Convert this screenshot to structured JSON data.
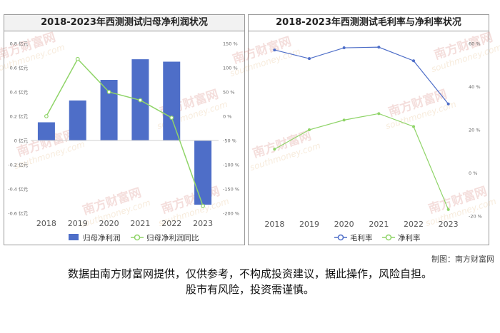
{
  "chart_data": [
    {
      "type": "bar",
      "title": "2018-2023年西测测试归母净利润状况",
      "categories": [
        "2018",
        "2019",
        "2020",
        "2021",
        "2022",
        "2023"
      ],
      "series": [
        {
          "name": "归母净利润",
          "kind": "bar",
          "axis": "left",
          "color": "#4e6ec8",
          "values": [
            0.15,
            0.33,
            0.5,
            0.67,
            0.65,
            -0.53
          ]
        },
        {
          "name": "归母净利润同比",
          "kind": "line",
          "axis": "right",
          "color": "#8fd468",
          "values": [
            0,
            118,
            50,
            33,
            -3,
            -185
          ]
        }
      ],
      "y_left": {
        "ylim": [
          -0.6,
          0.8
        ],
        "ticks": [
          -0.6,
          -0.4,
          -0.2,
          0,
          0.2,
          0.4,
          0.6,
          0.8
        ],
        "tick_labels": [
          "-0.6 亿元",
          "-0.4 亿元",
          "-0.2 亿元",
          "0 亿元",
          "0.2 亿元",
          "0.4 亿元",
          "0.6 亿元",
          "0.8 亿元"
        ]
      },
      "y_right": {
        "ylim": [
          -200,
          150
        ],
        "ticks": [
          -200,
          -150,
          -100,
          -50,
          0,
          50,
          100,
          150
        ],
        "tick_labels": [
          "-200 %",
          "-150 %",
          "-100 %",
          "-50 %",
          "0 %",
          "50 %",
          "100 %",
          "150 %"
        ]
      },
      "grid": false,
      "legend_position": "bottom"
    },
    {
      "type": "line",
      "title": "2018-2023年西测测试毛利率与净利率状况",
      "categories": [
        "2018",
        "2019",
        "2020",
        "2021",
        "2022",
        "2023"
      ],
      "series": [
        {
          "name": "毛利率",
          "color": "#4e6ec8",
          "values": [
            57,
            53,
            58,
            58.3,
            52,
            32
          ]
        },
        {
          "name": "净利率",
          "color": "#8fd468",
          "values": [
            11,
            20,
            24.5,
            27.5,
            21.5,
            -17
          ]
        }
      ],
      "y_right": {
        "ylim": [
          -20,
          60
        ],
        "ticks": [
          -20,
          0,
          20,
          40,
          60
        ],
        "tick_labels": [
          "-20 %",
          "0 %",
          "20 %",
          "40 %",
          "60 %"
        ]
      },
      "grid": false,
      "legend_position": "bottom"
    }
  ],
  "watermark": {
    "brand": "南方财富网",
    "url": "southmoney.com"
  },
  "credit": "制图：南方财富网",
  "disclaimer": {
    "line1": "数据由南方财富网提供，仅供参考，不构成投资建议，据此操作，风险自担。",
    "line2": "股市有风险，投资需谨慎。"
  }
}
